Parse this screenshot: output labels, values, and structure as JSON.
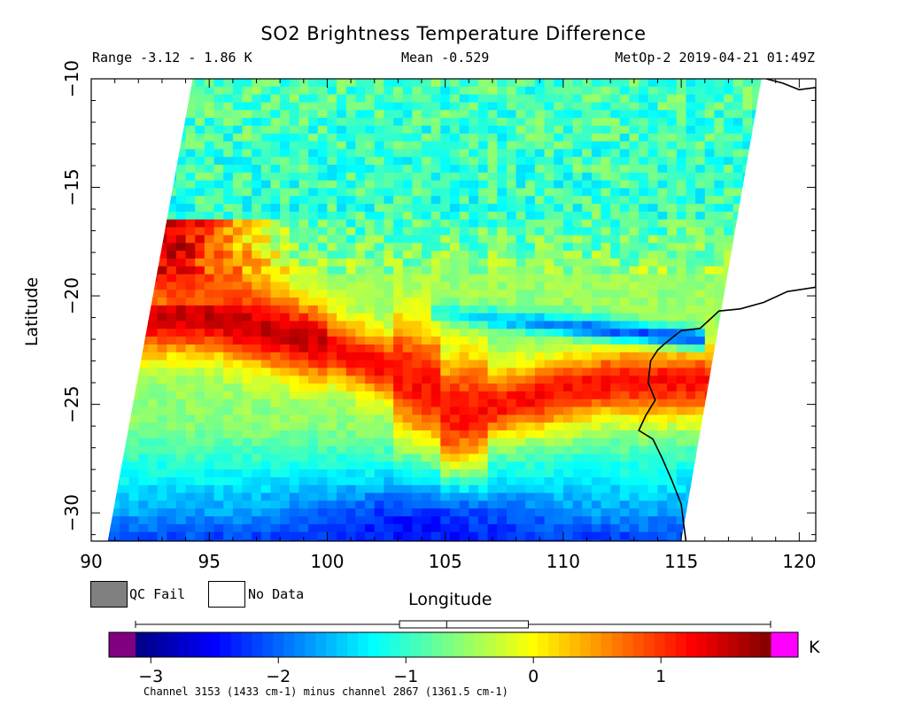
{
  "chart_data": {
    "type": "heatmap",
    "title": "SO2 Brightness Temperature Difference",
    "header": {
      "range": "Range -3.12 - 1.86 K",
      "mean": "Mean -0.529",
      "satellite_time": "MetOp-2 2019-04-21 01:49Z"
    },
    "xlabel": "Longitude",
    "ylabel": "Latitude",
    "xlim": [
      90,
      120.7
    ],
    "ylim": [
      -31.3,
      -10
    ],
    "xticks": [
      90,
      95,
      100,
      105,
      110,
      115,
      120
    ],
    "yticks": [
      -10,
      -15,
      -20,
      -25,
      -30
    ],
    "grid": false,
    "swath_corners": [
      [
        94.3,
        -10
      ],
      [
        118.4,
        -10
      ],
      [
        115.0,
        -31.3
      ],
      [
        90.7,
        -31.3
      ]
    ],
    "coastline": [
      [
        118.6,
        -10
      ],
      [
        119.3,
        -10.2
      ],
      [
        120.0,
        -10.5
      ],
      [
        120.7,
        -10.4
      ],
      [
        120.7,
        -19.6
      ],
      [
        119.5,
        -19.8
      ],
      [
        118.5,
        -20.3
      ],
      [
        117.5,
        -20.6
      ],
      [
        116.6,
        -20.7
      ],
      [
        115.8,
        -21.5
      ],
      [
        115.0,
        -21.6
      ],
      [
        114.3,
        -22.2
      ],
      [
        114.0,
        -22.5
      ],
      [
        113.7,
        -23.0
      ],
      [
        113.6,
        -24.0
      ],
      [
        113.9,
        -24.8
      ],
      [
        113.5,
        -25.5
      ],
      [
        113.2,
        -26.2
      ],
      [
        113.8,
        -26.6
      ],
      [
        114.2,
        -27.5
      ],
      [
        114.6,
        -28.5
      ],
      [
        115.0,
        -29.6
      ],
      [
        115.1,
        -30.5
      ],
      [
        115.2,
        -31.3
      ]
    ],
    "colorbar": {
      "min": -3.12,
      "max": 1.86,
      "unit": "K",
      "ticks": [
        -3,
        -2,
        -1,
        0,
        1
      ],
      "underflow_color": "#800080",
      "overflow_color": "#ff00ff",
      "stops": [
        "#00007f",
        "#0000ff",
        "#0080ff",
        "#00ffff",
        "#80ff80",
        "#ffff00",
        "#ff8000",
        "#ff0000",
        "#7f0000"
      ],
      "boxplot": {
        "min": -3.12,
        "q1": -1.05,
        "median": -0.68,
        "q3": -0.04,
        "max": 1.86
      }
    },
    "legend": [
      {
        "label": "QC Fail",
        "color": "#808080"
      },
      {
        "label": "No Data",
        "color": "#ffffff"
      }
    ],
    "footnote": "Channel 3153 (1433 cm-1) minus channel 2867 (1361.5 cm-1)",
    "field_features": {
      "background_lat": [
        [
          -10,
          -0.9
        ],
        [
          -16,
          -1.0
        ],
        [
          -19,
          -0.5
        ],
        [
          -26,
          -0.6
        ],
        [
          -30,
          -1.7
        ],
        [
          -31.3,
          -2.2
        ]
      ],
      "southern_red_band": {
        "center_west_lat": -20.9,
        "center_east_lat": -24.0,
        "vertex_lon": 105.0,
        "vertex_lat": -25.5,
        "peak_value": 1.5
      },
      "northern_blue_band": {
        "lon_start": 104.5,
        "lon_end": 116.0,
        "lat_start": -20.8,
        "lat_end": -22.0,
        "value": -2.1
      },
      "western_warm_edge": {
        "lat_from": -16.5,
        "lat_to": -20.5,
        "value": 0.9
      },
      "southern_blue_patch": {
        "lon": 104.0,
        "lat": -30.5,
        "value": -2.6
      }
    }
  }
}
